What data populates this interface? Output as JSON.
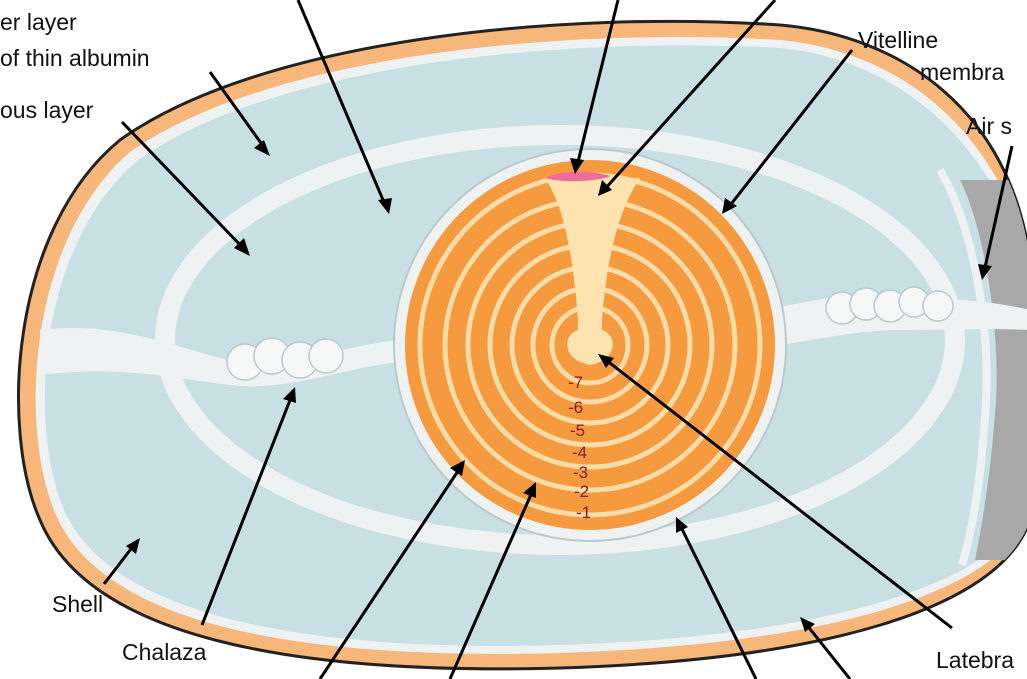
{
  "labels": {
    "outer_layer_thin_albumin_line1": "er layer",
    "outer_layer_thin_albumin_line2": "of thin albumin",
    "chalaziferous_layer": "ous layer",
    "vitelline_membrane_line1": "Vitelline",
    "vitelline_membrane_line2": "membra",
    "air_space": "Air s",
    "shell": "Shell",
    "chalaza": "Chalaza",
    "latebra": "Latebra"
  },
  "yolk_layer_numbers": [
    "-7",
    "-6",
    "-5",
    "-4",
    "-3",
    "-2",
    "-1"
  ],
  "colors": {
    "shell": "#f7b77a",
    "albumin": "#c8dfe4",
    "membrane": "#eef2f3",
    "yolk_dark": "#f59a3e",
    "yolk_light": "#fcdca8",
    "latebra": "#fde3b0",
    "blastoderm": "#ee6d9b",
    "air_space": "#a8a8a8"
  }
}
